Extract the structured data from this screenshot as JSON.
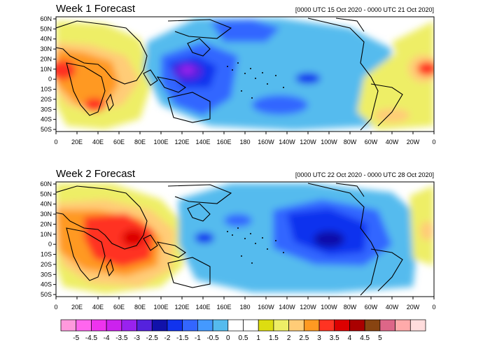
{
  "panels": [
    {
      "title": "Week 1 Forecast",
      "date_range": "[0000 UTC 15 Oct 2020 - 0000 UTC 21 Oct 2020]"
    },
    {
      "title": "Week 2 Forecast",
      "date_range": "[0000 UTC 22 Oct 2020 - 0000 UTC 28 Oct 2020]"
    }
  ],
  "lat_labels": [
    "60N",
    "50N",
    "40N",
    "30N",
    "20N",
    "10N",
    "0",
    "10S",
    "20S",
    "30S",
    "40S",
    "50S"
  ],
  "lon_labels": [
    "0",
    "20E",
    "40E",
    "60E",
    "80E",
    "100E",
    "120E",
    "140E",
    "160E",
    "180",
    "160W",
    "140W",
    "120W",
    "100W",
    "80W",
    "60W",
    "40W",
    "20W",
    "0"
  ],
  "colorbar": {
    "labels": [
      "-5",
      "-4.5",
      "-4",
      "-3.5",
      "-3",
      "-2.5",
      "-2",
      "-1.5",
      "-1",
      "-0.5",
      "0",
      "0.5",
      "1",
      "1.5",
      "2",
      "2.5",
      "3",
      "3.5",
      "4",
      "4.5",
      "5"
    ],
    "colors": [
      "#ff99dd",
      "#ff66ee",
      "#ee33ee",
      "#cc22ee",
      "#9922ee",
      "#5522dd",
      "#1111aa",
      "#1133ee",
      "#3366ff",
      "#4499ff",
      "#55bbee",
      "#ffffff",
      "#ffffff",
      "#dddd11",
      "#eeee66",
      "#ffcc77",
      "#ff9922",
      "#ff3322",
      "#dd0000",
      "#aa0000",
      "#884411",
      "#dd6688",
      "#ffaaaa",
      "#ffdddd"
    ]
  }
}
